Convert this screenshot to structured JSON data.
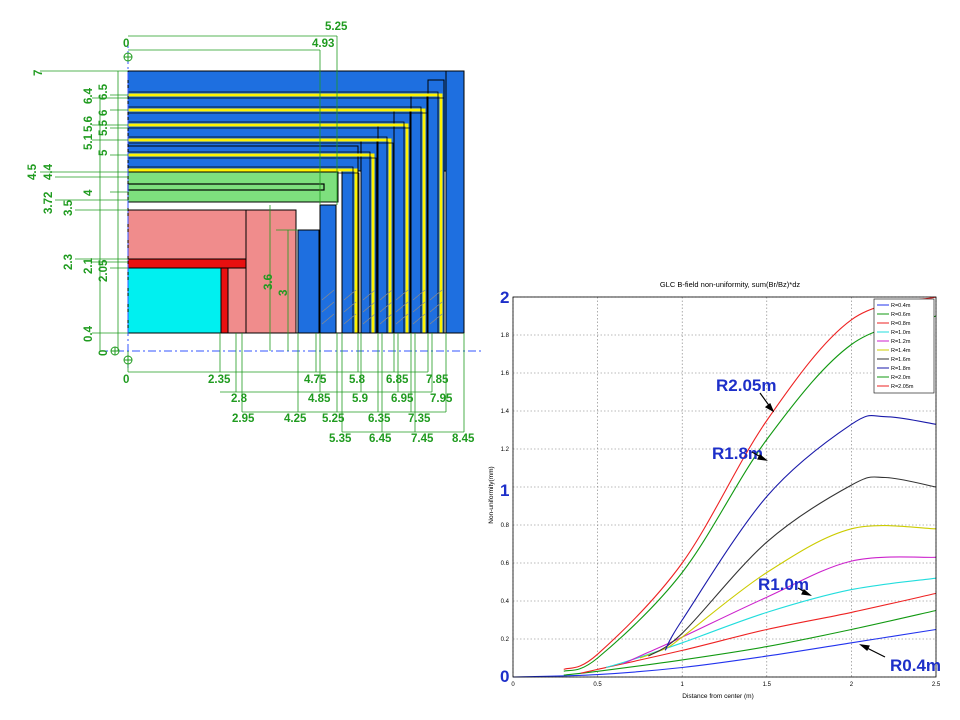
{
  "diagram": {
    "top_labels": [
      "5.25",
      "0",
      "4.93"
    ],
    "left_labels": [
      "7",
      "6.5",
      "6.4",
      "6",
      "5.6",
      "5.5",
      "5.1",
      "5",
      "4.5",
      "4.4",
      "4",
      "3.72",
      "3.5",
      "2.3",
      "2.1",
      "2.05",
      "0.4",
      "0"
    ],
    "mid_labels": [
      "3.6",
      "3"
    ],
    "bottom_labels": [
      "0",
      "2.35",
      "4.75",
      "5.8",
      "6.85",
      "7.85",
      "2.8",
      "4.85",
      "5.9",
      "6.95",
      "7.95",
      "2.95",
      "4.25",
      "5.25",
      "6.35",
      "7.35",
      "5.35",
      "6.45",
      "7.45",
      "8.45"
    ],
    "colors": {
      "iron": "#1e6fe0",
      "coil": "#fff200",
      "cryo": "#7ee07e",
      "calorimeter": "#f08c8c",
      "tracker": "#00f0f0",
      "red": "#e81010",
      "dim": "#1f9b1f"
    }
  },
  "plot": {
    "title": "GLC B-field non-uniformity, sum(Br/Bz)*dz",
    "xlabel": "Distance from center (m)",
    "ylabel": "Non-uniformity(mm)",
    "overlay_ticks": [
      "2",
      "1",
      "0"
    ],
    "callouts": [
      "R2.05m",
      "R1.8m",
      "R1.0m",
      "R0.4m"
    ]
  },
  "chart_data": {
    "type": "line",
    "title": "GLC B-field non-uniformity, sum(Br/Bz)*dz",
    "xlabel": "Distance from center (m)",
    "ylabel": "Non-uniformity(mm)",
    "xlim": [
      0,
      2.5
    ],
    "ylim": [
      0,
      2
    ],
    "x_ticks": [
      "0",
      "0.5",
      "1",
      "1.5",
      "2",
      "2.5"
    ],
    "y_ticks": [
      "0",
      "0.2",
      "0.4",
      "0.6",
      "0.8",
      "1",
      "1.2",
      "1.4",
      "1.6",
      "1.8",
      "2"
    ],
    "grid": true,
    "legend_position": "top-right",
    "series": [
      {
        "name": "R=0.4m",
        "color": "#2233ee",
        "x": [
          0,
          0.5,
          1.0,
          1.5,
          2.0,
          2.5
        ],
        "values": [
          0,
          0.013,
          0.05,
          0.11,
          0.18,
          0.25
        ]
      },
      {
        "name": "R=0.6m",
        "color": "#119911",
        "x": [
          0.3,
          0.5,
          1.0,
          1.5,
          2.0,
          2.5
        ],
        "values": [
          0.01,
          0.03,
          0.09,
          0.16,
          0.25,
          0.35
        ]
      },
      {
        "name": "R=0.8m",
        "color": "#ee2222",
        "x": [
          0.4,
          0.5,
          1.0,
          1.5,
          2.0,
          2.5
        ],
        "values": [
          0.02,
          0.04,
          0.14,
          0.25,
          0.34,
          0.44
        ]
      },
      {
        "name": "R=1.0m",
        "color": "#22dddd",
        "x": [
          0.55,
          0.7,
          1.0,
          1.5,
          2.0,
          2.5
        ],
        "values": [
          0.05,
          0.09,
          0.18,
          0.34,
          0.46,
          0.52
        ]
      },
      {
        "name": "R=1.2m",
        "color": "#cc22cc",
        "x": [
          0.65,
          0.8,
          1.0,
          1.5,
          2.0,
          2.5
        ],
        "values": [
          0.07,
          0.13,
          0.21,
          0.42,
          0.61,
          0.63
        ]
      },
      {
        "name": "R=1.4m",
        "color": "#cccc00",
        "x": [
          0.75,
          0.9,
          1.0,
          1.5,
          2.0,
          2.5
        ],
        "values": [
          0.1,
          0.15,
          0.21,
          0.55,
          0.78,
          0.78
        ]
      },
      {
        "name": "R=1.6m",
        "color": "#333333",
        "x": [
          0.8,
          1.0,
          1.5,
          2.0,
          2.2,
          2.5
        ],
        "values": [
          0.11,
          0.23,
          0.71,
          1.01,
          1.05,
          1.0
        ]
      },
      {
        "name": "R=1.8m",
        "color": "#1a1aaa",
        "x": [
          0.9,
          1.0,
          1.5,
          2.0,
          2.2,
          2.5
        ],
        "values": [
          0.14,
          0.3,
          0.95,
          1.33,
          1.37,
          1.33
        ]
      },
      {
        "name": "R=2.0m",
        "color": "#119911",
        "x": [
          0.3,
          0.5,
          1.0,
          1.5,
          2.0,
          2.5
        ],
        "values": [
          0.03,
          0.1,
          0.55,
          1.25,
          1.75,
          1.9
        ]
      },
      {
        "name": "R=2.05m",
        "color": "#ee2222",
        "x": [
          0.3,
          0.5,
          1.0,
          1.5,
          2.0,
          2.5
        ],
        "values": [
          0.04,
          0.12,
          0.6,
          1.35,
          1.88,
          2.0
        ]
      }
    ]
  }
}
